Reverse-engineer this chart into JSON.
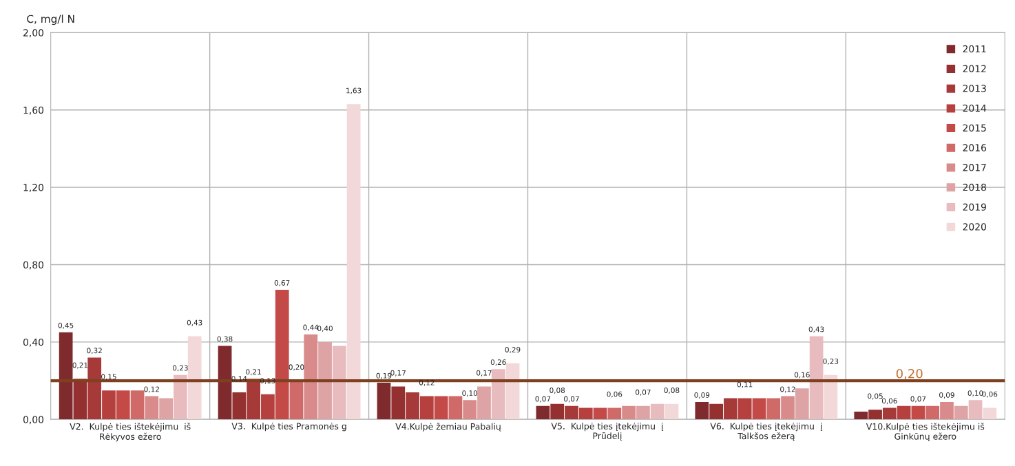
{
  "chart_data": {
    "type": "bar",
    "ylabel": "C, mg/l N",
    "categories": [
      "V2.  Kulpė ties ištekėjimu  iš\nRėkyvos ežero",
      "V3.  Kulpė ties Pramonės g",
      "V4.Kulpė žemiau Pabalių",
      "V5.  Kulpė ties įtekėjimu  į\nPrūdelį",
      "V6.  Kulpė ties įtekėjimu  į\nTalkšos ežerą",
      "V10.Kulpė ties ištekėjimu iš\nGinkūnų ežero"
    ],
    "series": [
      {
        "name": "2011",
        "color": "#7f2a2c",
        "values": [
          0.45,
          0.38,
          0.19,
          0.07,
          0.09,
          0.04
        ],
        "value_labels": [
          "0,45",
          "0,38",
          "0,19",
          "0,07",
          "0,09",
          null
        ]
      },
      {
        "name": "2012",
        "color": "#94302f",
        "values": [
          0.21,
          0.14,
          0.17,
          0.08,
          0.08,
          0.05
        ],
        "value_labels": [
          "0,21",
          "0,14",
          "0,17",
          "0,08",
          null,
          "0,05"
        ]
      },
      {
        "name": "2013",
        "color": "#a63a38",
        "values": [
          0.32,
          0.21,
          0.14,
          0.07,
          0.11,
          0.06
        ],
        "value_labels": [
          "0,32",
          "0,21",
          null,
          "0,07",
          null,
          "0,06"
        ]
      },
      {
        "name": "2014",
        "color": "#b5403d",
        "values": [
          0.15,
          0.13,
          0.12,
          0.06,
          0.11,
          0.07
        ],
        "value_labels": [
          "0,15",
          "0,13",
          "0,12",
          null,
          "0,11",
          null
        ]
      },
      {
        "name": "2015",
        "color": "#c44a48",
        "values": [
          0.15,
          0.67,
          0.12,
          0.06,
          0.11,
          0.07
        ],
        "value_labels": [
          null,
          "0,67",
          null,
          null,
          null,
          "0,07"
        ]
      },
      {
        "name": "2016",
        "color": "#cf6a68",
        "values": [
          0.15,
          0.2,
          0.12,
          0.06,
          0.11,
          0.07
        ],
        "value_labels": [
          null,
          "0,20",
          null,
          "0,06",
          null,
          null
        ]
      },
      {
        "name": "2017",
        "color": "#d98a8a",
        "values": [
          0.12,
          0.44,
          0.1,
          0.07,
          0.12,
          0.09
        ],
        "value_labels": [
          "0,12",
          "0,44",
          "0,10",
          null,
          "0,12",
          "0,09"
        ]
      },
      {
        "name": "2018",
        "color": "#dea3a5",
        "values": [
          0.11,
          0.4,
          0.17,
          0.07,
          0.16,
          0.07
        ],
        "value_labels": [
          null,
          "0,40",
          "0,17",
          "0,07",
          "0,16",
          null
        ]
      },
      {
        "name": "2019",
        "color": "#e8bcbf",
        "values": [
          0.23,
          0.38,
          0.26,
          0.08,
          0.43,
          0.1
        ],
        "value_labels": [
          "0,23",
          null,
          "0,26",
          null,
          "0,43",
          "0,10"
        ]
      },
      {
        "name": "2020",
        "color": "#f2d8d9",
        "values": [
          0.43,
          1.63,
          0.29,
          0.08,
          0.23,
          0.06
        ],
        "value_labels": [
          "0,43",
          "1,63",
          "0,29",
          "0,08",
          "0,23",
          "0,06"
        ]
      }
    ],
    "ylim": [
      0,
      2
    ],
    "yticks": [
      {
        "value": 0,
        "label": "0,00"
      },
      {
        "value": 0.4,
        "label": "0,40"
      },
      {
        "value": 0.8,
        "label": "0,80"
      },
      {
        "value": 1.2,
        "label": "1,20"
      },
      {
        "value": 1.6,
        "label": "1,60"
      },
      {
        "value": 2,
        "label": "2,00"
      }
    ],
    "ref_lines": [
      {
        "axis": "y",
        "value": 0.2,
        "label": "0,20",
        "color": "#7f4020"
      }
    ],
    "grid": true,
    "legend": "top right"
  }
}
